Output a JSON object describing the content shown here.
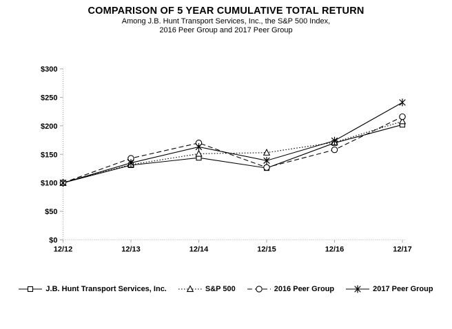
{
  "chart": {
    "title": "COMPARISON OF 5 YEAR CUMULATIVE TOTAL RETURN",
    "subtitle_line1": "Among J.B. Hunt Transport Services, Inc., the S&P 500 Index,",
    "subtitle_line2": "2016 Peer Group and 2017 Peer Group"
  },
  "chart_data": {
    "type": "line",
    "title": "COMPARISON OF 5 YEAR CUMULATIVE TOTAL RETURN",
    "subtitle": "Among J.B. Hunt Transport Services, Inc., the S&P 500 Index, 2016 Peer Group and 2017 Peer Group",
    "x_categories": [
      "12/12",
      "12/13",
      "12/14",
      "12/15",
      "12/16",
      "12/17"
    ],
    "y_tick_labels": [
      "$0",
      "$50",
      "$100",
      "$150",
      "$200",
      "$250",
      "$300"
    ],
    "ylim": [
      0,
      300
    ],
    "y_tick_step": 50,
    "grid": false,
    "legend_position": "bottom",
    "axis_color": "#a9a9a9",
    "series": [
      {
        "name": "J.B. Hunt Transport Services, Inc.",
        "marker": "square",
        "line_style": "solid",
        "color": "#000000",
        "values": [
          100,
          131,
          144,
          126,
          170,
          202
        ]
      },
      {
        "name": "S&P 500",
        "marker": "triangle",
        "line_style": "dotted",
        "color": "#000000",
        "values": [
          100,
          132,
          151,
          153,
          171,
          208
        ]
      },
      {
        "name": "2016 Peer Group",
        "marker": "circle",
        "line_style": "dashed",
        "color": "#000000",
        "values": [
          100,
          143,
          170,
          127,
          158,
          216
        ]
      },
      {
        "name": "2017 Peer Group",
        "marker": "star",
        "line_style": "solid",
        "color": "#000000",
        "values": [
          100,
          135,
          163,
          139,
          174,
          241
        ]
      }
    ]
  }
}
